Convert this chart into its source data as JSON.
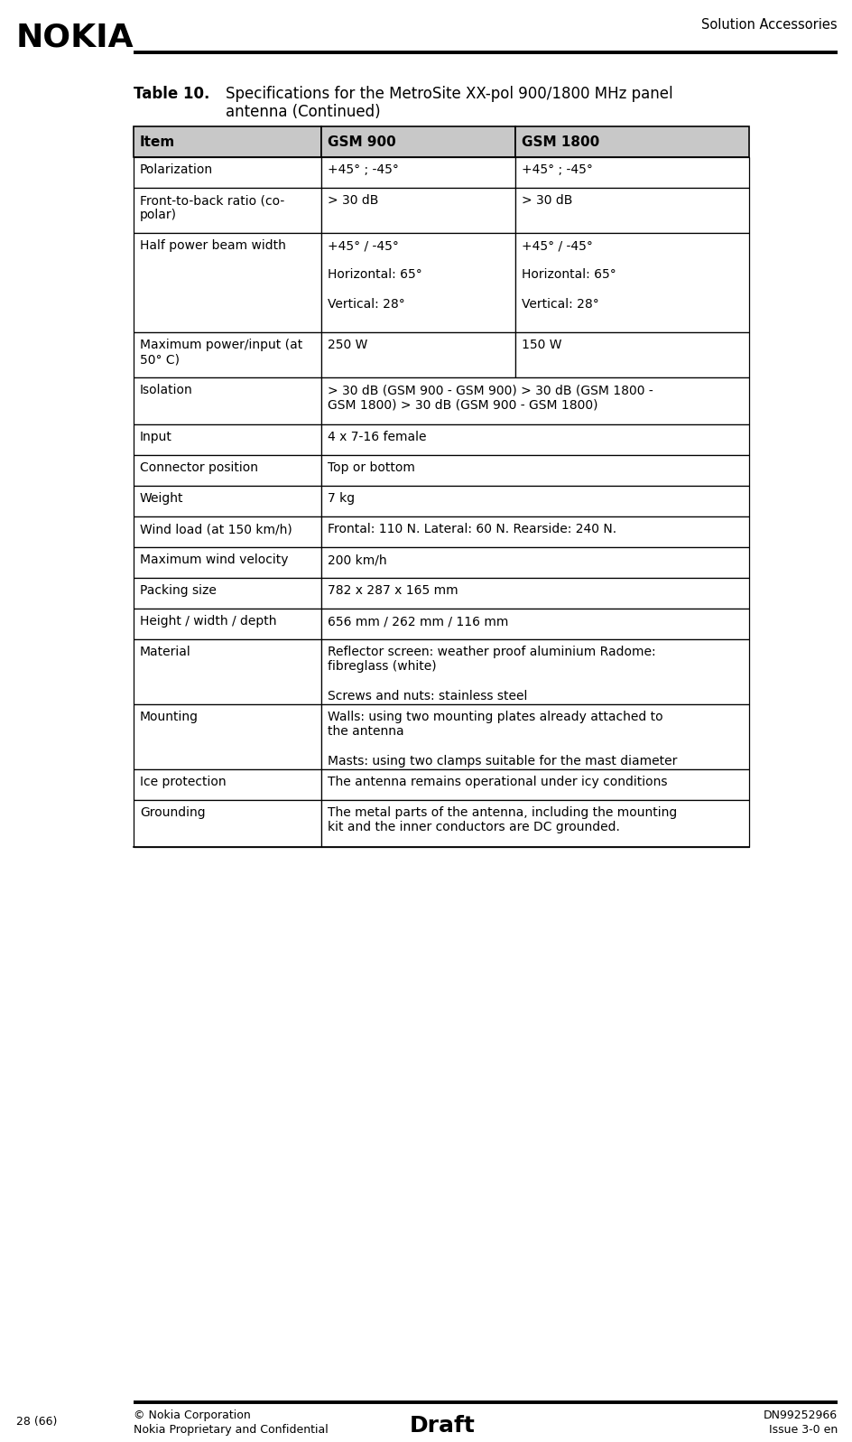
{
  "page_title_right": "Solution Accessories",
  "table_label": "Table 10.",
  "table_caption_line1": "Specifications for the MetroSite XX-pol 900/1800 MHz panel",
  "table_caption_line2": "antenna (Continued)",
  "header_col1": "Item",
  "header_col2": "GSM 900",
  "header_col3": "GSM 1800",
  "rows": [
    {
      "item": "Polarization",
      "gsm900": "+45° ; -45°",
      "gsm1800": "+45° ; -45°",
      "merged": false,
      "rh": 34
    },
    {
      "item": "Front-to-back ratio (co-\npolar)",
      "gsm900": "> 30 dB",
      "gsm1800": "> 30 dB",
      "merged": false,
      "rh": 50
    },
    {
      "item": "Half power beam width",
      "gsm900": "+45° / -45°\n\nHorizontal: 65°\n\nVertical: 28°",
      "gsm1800": "+45° / -45°\n\nHorizontal: 65°\n\nVertical: 28°",
      "merged": false,
      "rh": 110
    },
    {
      "item": "Maximum power/input (at\n50° C)",
      "gsm900": "250 W",
      "gsm1800": "150 W",
      "merged": false,
      "rh": 50
    },
    {
      "item": "Isolation",
      "gsm900": "> 30 dB (GSM 900 - GSM 900) > 30 dB (GSM 1800 -\nGSM 1800) > 30 dB (GSM 900 - GSM 1800)",
      "gsm1800": "",
      "merged": true,
      "rh": 52
    },
    {
      "item": "Input",
      "gsm900": "4 x 7-16 female",
      "gsm1800": "",
      "merged": true,
      "rh": 34
    },
    {
      "item": "Connector position",
      "gsm900": "Top or bottom",
      "gsm1800": "",
      "merged": true,
      "rh": 34
    },
    {
      "item": "Weight",
      "gsm900": "7 kg",
      "gsm1800": "",
      "merged": true,
      "rh": 34
    },
    {
      "item": "Wind load (at 150 km/h)",
      "gsm900": "Frontal: 110 N. Lateral: 60 N. Rearside: 240 N.",
      "gsm1800": "",
      "merged": true,
      "rh": 34
    },
    {
      "item": "Maximum wind velocity",
      "gsm900": "200 km/h",
      "gsm1800": "",
      "merged": true,
      "rh": 34
    },
    {
      "item": "Packing size",
      "gsm900": "782 x 287 x 165 mm",
      "gsm1800": "",
      "merged": true,
      "rh": 34
    },
    {
      "item": "Height / width / depth",
      "gsm900": "656 mm / 262 mm / 116 mm",
      "gsm1800": "",
      "merged": true,
      "rh": 34
    },
    {
      "item": "Material",
      "gsm900": "Reflector screen: weather proof aluminium Radome:\nfibreglass (white)\n\nScrews and nuts: stainless steel",
      "gsm1800": "",
      "merged": true,
      "rh": 72
    },
    {
      "item": "Mounting",
      "gsm900": "Walls: using two mounting plates already attached to\nthe antenna\n\nMasts: using two clamps suitable for the mast diameter",
      "gsm1800": "",
      "merged": true,
      "rh": 72
    },
    {
      "item": "Ice protection",
      "gsm900": "The antenna remains operational under icy conditions",
      "gsm1800": "",
      "merged": true,
      "rh": 34
    },
    {
      "item": "Grounding",
      "gsm900": "The metal parts of the antenna, including the mounting\nkit and the inner conductors are DC grounded.",
      "gsm1800": "",
      "merged": true,
      "rh": 52
    }
  ],
  "footer_left": "28 (66)",
  "footer_center_bold": "Draft",
  "footer_center_line1": "© Nokia Corporation",
  "footer_center_line2": "Nokia Proprietary and Confidential",
  "footer_right_line1": "DN99252966",
  "footer_right_line2": "Issue 3-0 en",
  "header_bg": "#c8c8c8",
  "font_size": 10.0,
  "header_font_size": 11.0,
  "caption_font_size": 12.0
}
